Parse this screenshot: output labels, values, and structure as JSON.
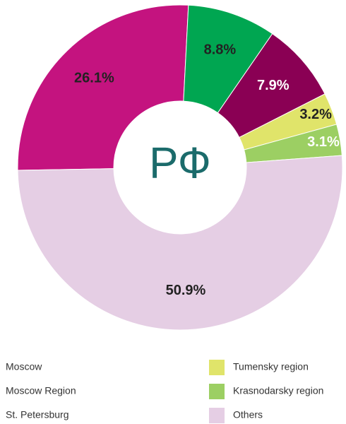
{
  "chart_data": {
    "type": "donut",
    "center_label": "РФ",
    "categories": [
      "Moscow",
      "Moscow Region",
      "St. Petersburg",
      "Tumensky region",
      "Krasnodarsky region",
      "Others"
    ],
    "values": [
      26.1,
      8.8,
      7.9,
      3.2,
      3.1,
      50.9
    ],
    "value_labels": [
      "26.1%",
      "8.8%",
      "7.9%",
      "3.2%",
      "3.1%",
      "50.9%"
    ],
    "colors": [
      "#c4137f",
      "#00a651",
      "#8a0054",
      "#e0e46a",
      "#9ccf63",
      "#e5cee4"
    ],
    "label_colors": [
      "#222222",
      "#222222",
      "#ffffff",
      "#222222",
      "#ffffff",
      "#222222"
    ]
  }
}
